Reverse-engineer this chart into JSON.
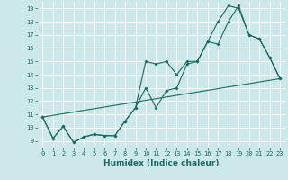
{
  "xlabel": "Humidex (Indice chaleur)",
  "bg_color": "#cce8ea",
  "line_color": "#1a6b5e",
  "grid_color": "#ffffff",
  "xlim": [
    -0.5,
    23.5
  ],
  "ylim": [
    8.5,
    19.5
  ],
  "xticks": [
    0,
    1,
    2,
    3,
    4,
    5,
    6,
    7,
    8,
    9,
    10,
    11,
    12,
    13,
    14,
    15,
    16,
    17,
    18,
    19,
    20,
    21,
    22,
    23
  ],
  "yticks": [
    9,
    10,
    11,
    12,
    13,
    14,
    15,
    16,
    17,
    18,
    19
  ],
  "line1_x": [
    0,
    1,
    2,
    3,
    4,
    5,
    6,
    7,
    8,
    9,
    10,
    11,
    12,
    13,
    14,
    15,
    16,
    17,
    18,
    19,
    20,
    21,
    22,
    23
  ],
  "line1_y": [
    10.8,
    9.2,
    10.1,
    8.9,
    9.3,
    9.5,
    9.4,
    9.4,
    10.5,
    11.5,
    13.0,
    11.5,
    12.8,
    13.0,
    14.8,
    15.0,
    16.5,
    18.0,
    19.2,
    19.0,
    17.0,
    16.7,
    15.3,
    13.7
  ],
  "line2_x": [
    0,
    1,
    2,
    3,
    4,
    5,
    6,
    7,
    8,
    9,
    10,
    11,
    12,
    13,
    14,
    15,
    16,
    17,
    18,
    19,
    20,
    21,
    22,
    23
  ],
  "line2_y": [
    10.8,
    9.2,
    10.1,
    8.9,
    9.3,
    9.5,
    9.4,
    9.4,
    10.5,
    11.5,
    15.0,
    14.8,
    15.0,
    14.0,
    15.0,
    15.0,
    16.5,
    16.3,
    18.0,
    19.2,
    17.0,
    16.7,
    15.3,
    13.7
  ],
  "line3_x": [
    0,
    23
  ],
  "line3_y": [
    10.8,
    13.7
  ],
  "xlabel_fontsize": 6.5,
  "xlabel_fontweight": "bold",
  "tick_fontsize": 5.0,
  "linewidth": 0.8,
  "markersize": 2.0
}
